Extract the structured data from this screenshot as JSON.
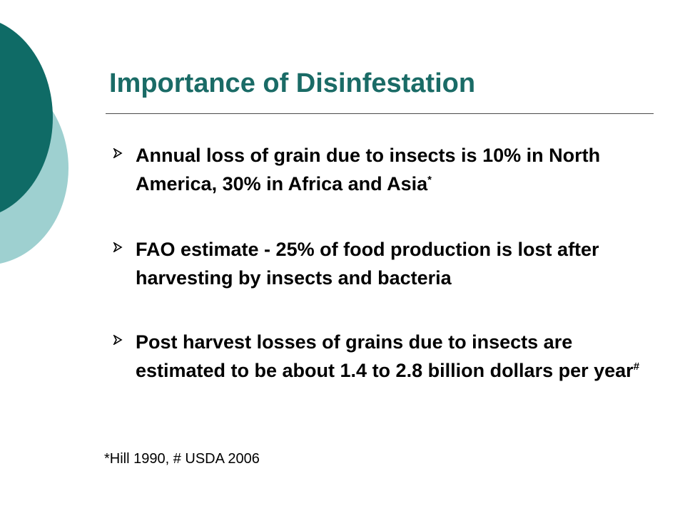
{
  "slide": {
    "title": "Importance of Disinfestation",
    "bullets": [
      {
        "text": "Annual loss of grain due to insects is 10% in North America, 30% in Africa and Asia",
        "sup": "*"
      },
      {
        "text": "FAO estimate - 25% of food production is lost after harvesting by insects and bacteria",
        "sup": ""
      },
      {
        "text": "Post harvest losses of grains due to insects are estimated to be about 1.4 to 2.8 billion dollars per year",
        "sup": "#"
      }
    ],
    "footnote": "*Hill 1990, # USDA 2006"
  },
  "colors": {
    "title": "#1a6b66",
    "accent_dark": "#0f6b66",
    "accent_light": "#9ed0d0"
  },
  "icons": {
    "bullet": "arrowhead-bullet-icon"
  }
}
